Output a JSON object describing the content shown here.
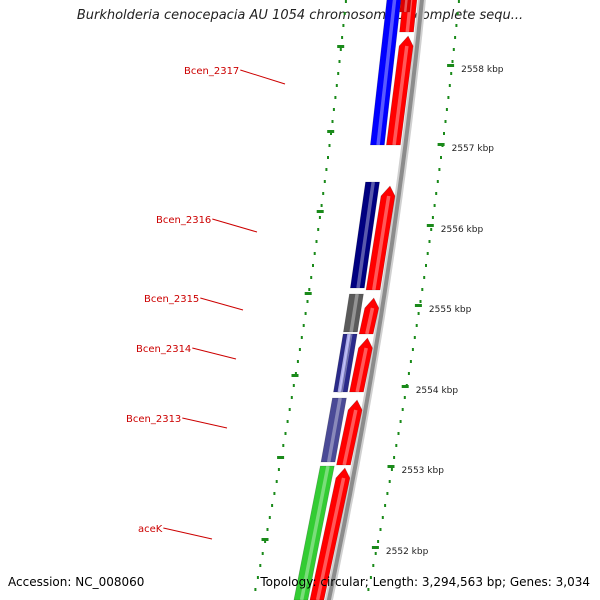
{
  "title": "Burkholderia cenocepacia AU 1054 chromosome 1, complete sequ...",
  "footer": {
    "accession": "Accession: NC_008060",
    "topology": "Topology: circular; Length: 3,294,563 bp; Genes: 3,034"
  },
  "colors": {
    "label_red": "#cc0000",
    "tick_green": "#1a8a1a",
    "forward_red": "#ff0000",
    "backbone_gray": "#8c8c8c",
    "gene_blue": "#0000ff",
    "gene_navy": "#000080",
    "gene_dark_gray": "#5a5a5a",
    "gene_slate": "#4a4a96",
    "gene_green": "#33cc33"
  },
  "ruler_ticks": [
    {
      "label": "2558 kbp"
    },
    {
      "label": "2557 kbp"
    },
    {
      "label": "2556 kbp"
    },
    {
      "label": "2555 kbp"
    },
    {
      "label": "2554 kbp"
    },
    {
      "label": "2553 kbp"
    },
    {
      "label": "2552 kbp"
    }
  ],
  "genes": [
    {
      "name": "Bcen_2317",
      "color": "#0000ff"
    },
    {
      "name": "Bcen_2316",
      "color": "#000080"
    },
    {
      "name": "Bcen_2315",
      "color": "#5a5a5a"
    },
    {
      "name": "Bcen_2314",
      "color": "#2a2a8a"
    },
    {
      "name": "Bcen_2313",
      "color": "#4a4a96"
    },
    {
      "name": "aceK",
      "color": "#33cc33"
    }
  ]
}
